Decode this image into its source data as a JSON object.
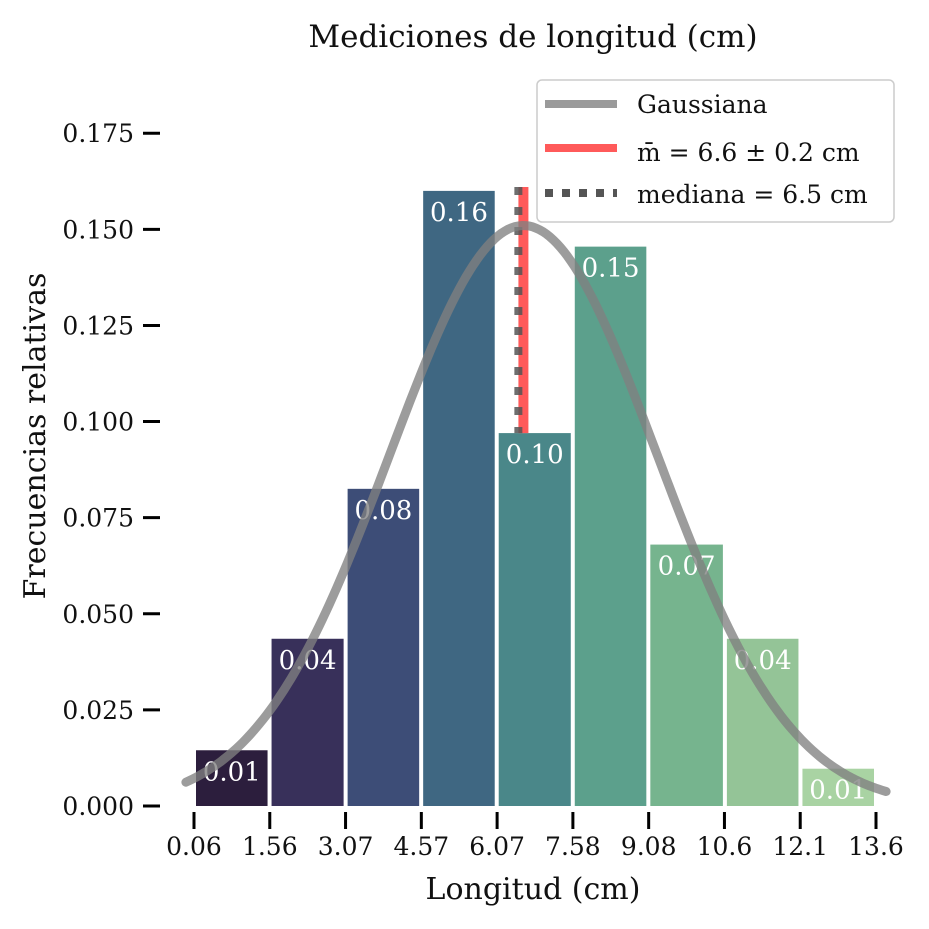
{
  "chart_data": {
    "type": "bar",
    "title": "Mediciones de longitud (cm)",
    "xlabel": "Longitud (cm)",
    "ylabel": "Frecuencias relativas",
    "x_ticks": [
      "0.06",
      "1.56",
      "3.07",
      "4.57",
      "6.07",
      "7.58",
      "9.08",
      "10.6",
      "12.1",
      "13.6"
    ],
    "y_ticks": [
      "0.000",
      "0.025",
      "0.050",
      "0.075",
      "0.100",
      "0.125",
      "0.150",
      "0.175"
    ],
    "xlim": [
      0.06,
      13.6
    ],
    "ylim": [
      0,
      0.18
    ],
    "bins": [
      {
        "start": 0.06,
        "end": 1.56,
        "value": 0.0145,
        "label": "0.01",
        "color": "#2c1e3d"
      },
      {
        "start": 1.56,
        "end": 3.07,
        "value": 0.0435,
        "label": "0.04",
        "color": "#38305a"
      },
      {
        "start": 3.07,
        "end": 4.57,
        "value": 0.0825,
        "label": "0.08",
        "color": "#3d4d77"
      },
      {
        "start": 4.57,
        "end": 6.07,
        "value": 0.16,
        "label": "0.16",
        "color": "#3f6782"
      },
      {
        "start": 6.07,
        "end": 7.58,
        "value": 0.097,
        "label": "0.10",
        "color": "#4a8789"
      },
      {
        "start": 7.58,
        "end": 9.08,
        "value": 0.1455,
        "label": "0.15",
        "color": "#5ca08c"
      },
      {
        "start": 9.08,
        "end": 10.6,
        "value": 0.068,
        "label": "0.07",
        "color": "#76b48e"
      },
      {
        "start": 10.6,
        "end": 12.1,
        "value": 0.0435,
        "label": "0.04",
        "color": "#94c497"
      },
      {
        "start": 12.1,
        "end": 13.6,
        "value": 0.0097,
        "label": "0.01",
        "color": "#a9d3a3"
      }
    ],
    "gaussian": {
      "mean": 6.6,
      "std": 2.65,
      "peak": 0.151,
      "color": "#808080"
    },
    "mean_line": {
      "x": 6.6,
      "top": 0.161,
      "color": "#ff5a5a"
    },
    "median_line": {
      "x": 6.5,
      "top": 0.161,
      "color": "#555555"
    },
    "legend": {
      "placement": "top-right",
      "entries": [
        {
          "label": "Gaussiana",
          "style": "solid",
          "color": "#9a9a9a"
        },
        {
          "label": "m̄ = 6.6 ± 0.2 cm",
          "style": "solid",
          "color": "#ff5a5a"
        },
        {
          "label": "mediana = 6.5 cm",
          "style": "dotted",
          "color": "#555555"
        }
      ]
    },
    "grid": false
  }
}
